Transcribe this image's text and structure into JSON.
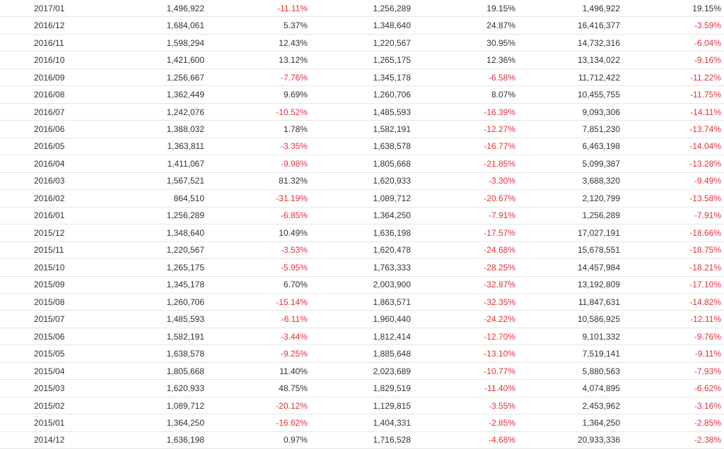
{
  "colors": {
    "negative": "#e3323b",
    "text": "#333333",
    "row_border": "#e6e6e6"
  },
  "rows": [
    {
      "period": "2017/01",
      "monthly": "1,496,922",
      "mom": "-11.11%",
      "prev_year": "1,256,289",
      "yoy": "19.15%",
      "cumulative": "1,496,922",
      "cum_yoy": "19.15%"
    },
    {
      "period": "2016/12",
      "monthly": "1,684,061",
      "mom": "5.37%",
      "prev_year": "1,348,640",
      "yoy": "24.87%",
      "cumulative": "16,416,377",
      "cum_yoy": "-3.59%"
    },
    {
      "period": "2016/11",
      "monthly": "1,598,294",
      "mom": "12.43%",
      "prev_year": "1,220,567",
      "yoy": "30.95%",
      "cumulative": "14,732,316",
      "cum_yoy": "-6.04%"
    },
    {
      "period": "2016/10",
      "monthly": "1,421,600",
      "mom": "13.12%",
      "prev_year": "1,265,175",
      "yoy": "12.36%",
      "cumulative": "13,134,022",
      "cum_yoy": "-9.16%"
    },
    {
      "period": "2016/09",
      "monthly": "1,256,667",
      "mom": "-7.76%",
      "prev_year": "1,345,178",
      "yoy": "-6.58%",
      "cumulative": "11,712,422",
      "cum_yoy": "-11.22%"
    },
    {
      "period": "2016/08",
      "monthly": "1,362,449",
      "mom": "9.69%",
      "prev_year": "1,260,706",
      "yoy": "8.07%",
      "cumulative": "10,455,755",
      "cum_yoy": "-11.75%"
    },
    {
      "period": "2016/07",
      "monthly": "1,242,076",
      "mom": "-10.52%",
      "prev_year": "1,485,593",
      "yoy": "-16.39%",
      "cumulative": "9,093,306",
      "cum_yoy": "-14.11%"
    },
    {
      "period": "2016/06",
      "monthly": "1,388,032",
      "mom": "1.78%",
      "prev_year": "1,582,191",
      "yoy": "-12.27%",
      "cumulative": "7,851,230",
      "cum_yoy": "-13.74%"
    },
    {
      "period": "2016/05",
      "monthly": "1,363,811",
      "mom": "-3.35%",
      "prev_year": "1,638,578",
      "yoy": "-16.77%",
      "cumulative": "6,463,198",
      "cum_yoy": "-14.04%"
    },
    {
      "period": "2016/04",
      "monthly": "1,411,067",
      "mom": "-9.98%",
      "prev_year": "1,805,668",
      "yoy": "-21.85%",
      "cumulative": "5,099,387",
      "cum_yoy": "-13.28%"
    },
    {
      "period": "2016/03",
      "monthly": "1,567,521",
      "mom": "81.32%",
      "prev_year": "1,620,933",
      "yoy": "-3.30%",
      "cumulative": "3,688,320",
      "cum_yoy": "-9.49%"
    },
    {
      "period": "2016/02",
      "monthly": "864,510",
      "mom": "-31.19%",
      "prev_year": "1,089,712",
      "yoy": "-20.67%",
      "cumulative": "2,120,799",
      "cum_yoy": "-13.58%"
    },
    {
      "period": "2016/01",
      "monthly": "1,256,289",
      "mom": "-6.85%",
      "prev_year": "1,364,250",
      "yoy": "-7.91%",
      "cumulative": "1,256,289",
      "cum_yoy": "-7.91%"
    },
    {
      "period": "2015/12",
      "monthly": "1,348,640",
      "mom": "10.49%",
      "prev_year": "1,636,198",
      "yoy": "-17.57%",
      "cumulative": "17,027,191",
      "cum_yoy": "-18.66%"
    },
    {
      "period": "2015/11",
      "monthly": "1,220,567",
      "mom": "-3.53%",
      "prev_year": "1,620,478",
      "yoy": "-24.68%",
      "cumulative": "15,678,551",
      "cum_yoy": "-18.75%"
    },
    {
      "period": "2015/10",
      "monthly": "1,265,175",
      "mom": "-5.95%",
      "prev_year": "1,763,333",
      "yoy": "-28.25%",
      "cumulative": "14,457,984",
      "cum_yoy": "-18.21%"
    },
    {
      "period": "2015/09",
      "monthly": "1,345,178",
      "mom": "6.70%",
      "prev_year": "2,003,900",
      "yoy": "-32.87%",
      "cumulative": "13,192,809",
      "cum_yoy": "-17.10%"
    },
    {
      "period": "2015/08",
      "monthly": "1,260,706",
      "mom": "-15.14%",
      "prev_year": "1,863,571",
      "yoy": "-32.35%",
      "cumulative": "11,847,631",
      "cum_yoy": "-14.82%"
    },
    {
      "period": "2015/07",
      "monthly": "1,485,593",
      "mom": "-6.11%",
      "prev_year": "1,960,440",
      "yoy": "-24.22%",
      "cumulative": "10,586,925",
      "cum_yoy": "-12.11%"
    },
    {
      "period": "2015/06",
      "monthly": "1,582,191",
      "mom": "-3.44%",
      "prev_year": "1,812,414",
      "yoy": "-12.70%",
      "cumulative": "9,101,332",
      "cum_yoy": "-9.76%"
    },
    {
      "period": "2015/05",
      "monthly": "1,638,578",
      "mom": "-9.25%",
      "prev_year": "1,885,648",
      "yoy": "-13.10%",
      "cumulative": "7,519,141",
      "cum_yoy": "-9.11%"
    },
    {
      "period": "2015/04",
      "monthly": "1,805,668",
      "mom": "11.40%",
      "prev_year": "2,023,689",
      "yoy": "-10.77%",
      "cumulative": "5,880,563",
      "cum_yoy": "-7.93%"
    },
    {
      "period": "2015/03",
      "monthly": "1,620,933",
      "mom": "48.75%",
      "prev_year": "1,829,519",
      "yoy": "-11.40%",
      "cumulative": "4,074,895",
      "cum_yoy": "-6.62%"
    },
    {
      "period": "2015/02",
      "monthly": "1,089,712",
      "mom": "-20.12%",
      "prev_year": "1,129,815",
      "yoy": "-3.55%",
      "cumulative": "2,453,962",
      "cum_yoy": "-3.16%"
    },
    {
      "period": "2015/01",
      "monthly": "1,364,250",
      "mom": "-16.62%",
      "prev_year": "1,404,331",
      "yoy": "-2.85%",
      "cumulative": "1,364,250",
      "cum_yoy": "-2.85%"
    },
    {
      "period": "2014/12",
      "monthly": "1,636,198",
      "mom": "0.97%",
      "prev_year": "1,716,528",
      "yoy": "-4.68%",
      "cumulative": "20,933,336",
      "cum_yoy": "-2.38%"
    }
  ]
}
